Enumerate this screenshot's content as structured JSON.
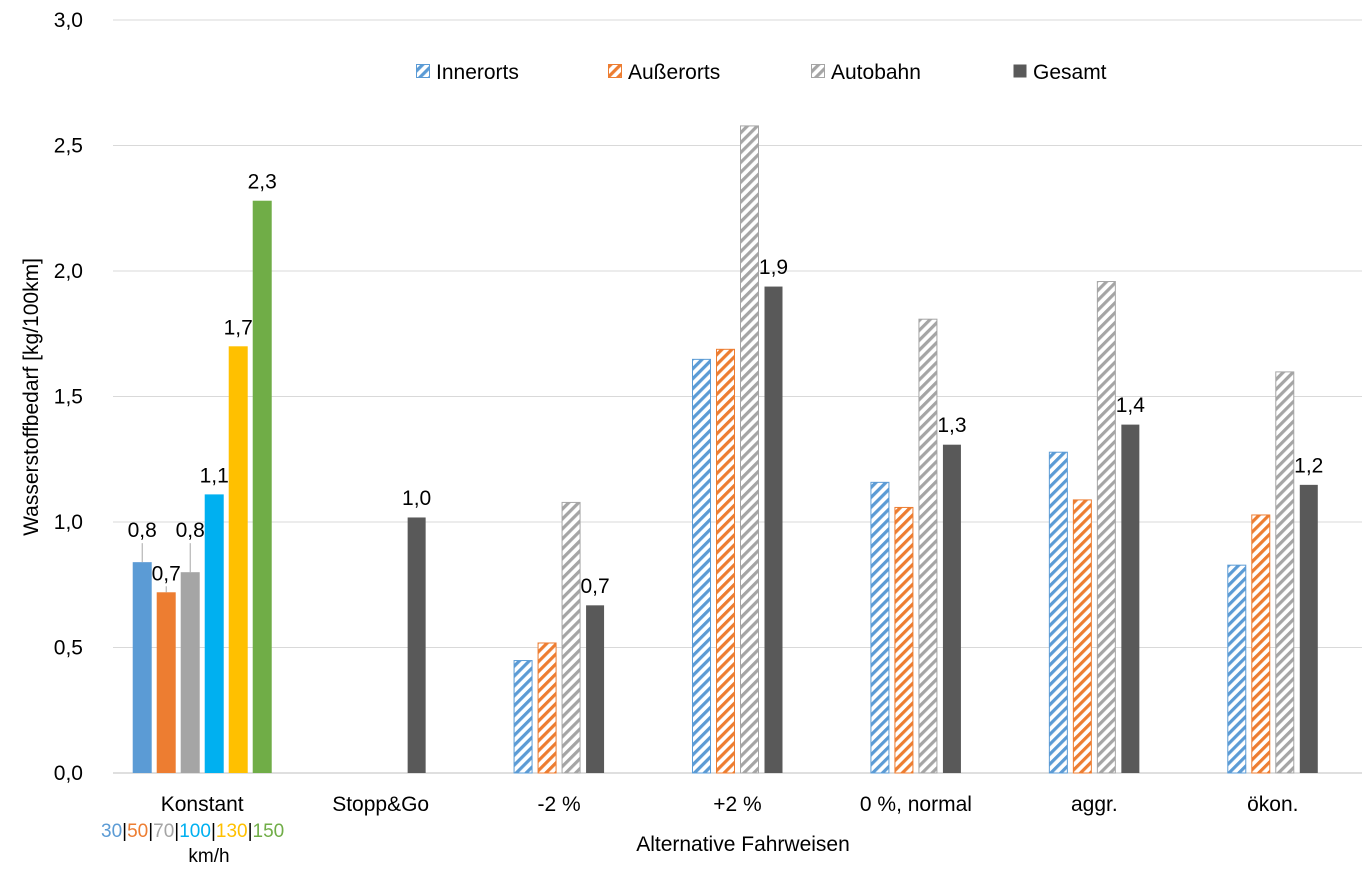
{
  "chart_data": {
    "type": "bar",
    "xlabel": "Alternative Fahrweisen",
    "ylabel": "Wasserstoffbedarf [kg/100km]",
    "ylim": [
      0,
      3
    ],
    "yticks": [
      "0,0",
      "0,5",
      "1,0",
      "1,5",
      "2,0",
      "2,5",
      "3,0"
    ],
    "grid": true,
    "legend_position": "top-center",
    "categories": [
      "Konstant",
      "Stopp&Go",
      "-2 %",
      "+2 %",
      "0 %, normal",
      "aggr.",
      "ökon."
    ],
    "series": [
      {
        "name": "Innerorts",
        "color": "#5b9bd5",
        "pattern": "hatch",
        "values": [
          null,
          null,
          0.45,
          1.65,
          1.16,
          1.28,
          0.83
        ]
      },
      {
        "name": "Außerorts",
        "color": "#ed7d31",
        "pattern": "hatch",
        "values": [
          null,
          null,
          0.52,
          1.69,
          1.06,
          1.09,
          1.03
        ]
      },
      {
        "name": "Autobahn",
        "color": "#a5a5a5",
        "pattern": "hatch",
        "values": [
          null,
          null,
          1.08,
          2.58,
          1.81,
          1.96,
          1.6
        ]
      },
      {
        "name": "Gesamt",
        "color": "#595959",
        "pattern": "solid",
        "values": [
          null,
          1.02,
          0.67,
          1.94,
          1.31,
          1.39,
          1.15
        ]
      }
    ],
    "gesamt_labels": [
      null,
      "1,0",
      "0,7",
      "1,9",
      "1,3",
      "1,4",
      "1,2"
    ],
    "konstant": {
      "values": [
        0.84,
        0.72,
        0.8,
        1.11,
        1.7,
        2.28
      ],
      "labels": [
        "0,8",
        "0,7",
        "0,8",
        "1,1",
        "1,7",
        "2,3"
      ],
      "colors": [
        "#5b9bd5",
        "#ed7d31",
        "#a5a5a5",
        "#00b0f0",
        "#ffc000",
        "#70ad47"
      ],
      "speeds": [
        "30",
        "50",
        "70",
        "100",
        "130",
        "150"
      ],
      "separator": "|",
      "unit": "km/h"
    }
  }
}
